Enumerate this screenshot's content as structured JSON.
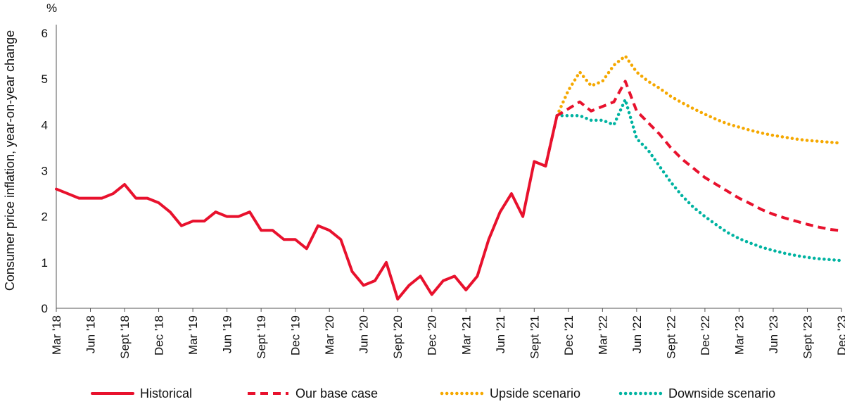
{
  "chart_data": {
    "type": "line",
    "unit_label": "%",
    "ylabel": "Consumer price inflation, year-on-year change",
    "ylim": [
      0,
      6
    ],
    "y_ticks": [
      "0",
      "1",
      "2",
      "3",
      "4",
      "5",
      "6"
    ],
    "x_start": "2018-03",
    "x_end": "2023-12",
    "x_ticks": [
      {
        "label": "Mar '18",
        "date": "2018-03"
      },
      {
        "label": "Jun '18",
        "date": "2018-06"
      },
      {
        "label": "Sept '18",
        "date": "2018-09"
      },
      {
        "label": "Dec '18",
        "date": "2018-12"
      },
      {
        "label": "Mar '19",
        "date": "2019-03"
      },
      {
        "label": "Jun '19",
        "date": "2019-06"
      },
      {
        "label": "Sept '19",
        "date": "2019-09"
      },
      {
        "label": "Dec '19",
        "date": "2019-12"
      },
      {
        "label": "Mar '20",
        "date": "2020-03"
      },
      {
        "label": "Jun '20",
        "date": "2020-06"
      },
      {
        "label": "Sept '20",
        "date": "2020-09"
      },
      {
        "label": "Dec '20",
        "date": "2020-12"
      },
      {
        "label": "Mar '21",
        "date": "2021-03"
      },
      {
        "label": "Jun '21",
        "date": "2021-06"
      },
      {
        "label": "Sept '21",
        "date": "2021-09"
      },
      {
        "label": "Dec '21",
        "date": "2021-12"
      },
      {
        "label": "Mar '22",
        "date": "2022-03"
      },
      {
        "label": "Jun '22",
        "date": "2022-06"
      },
      {
        "label": "Sept '22",
        "date": "2022-09"
      },
      {
        "label": "Dec '22",
        "date": "2022-12"
      },
      {
        "label": "Mar '23",
        "date": "2023-03"
      },
      {
        "label": "Jun '23",
        "date": "2023-06"
      },
      {
        "label": "Sept '23",
        "date": "2023-09"
      },
      {
        "label": "Dec '23",
        "date": "2023-12"
      }
    ],
    "grid": false,
    "legend_position": "bottom",
    "series": [
      {
        "name": "Historical",
        "color": "#e8112d",
        "style": "solid",
        "points": [
          [
            "2018-03",
            2.6
          ],
          [
            "2018-04",
            2.5
          ],
          [
            "2018-05",
            2.4
          ],
          [
            "2018-06",
            2.4
          ],
          [
            "2018-07",
            2.4
          ],
          [
            "2018-08",
            2.5
          ],
          [
            "2018-09",
            2.7
          ],
          [
            "2018-10",
            2.4
          ],
          [
            "2018-11",
            2.4
          ],
          [
            "2018-12",
            2.3
          ],
          [
            "2019-01",
            2.1
          ],
          [
            "2019-02",
            1.8
          ],
          [
            "2019-03",
            1.9
          ],
          [
            "2019-04",
            1.9
          ],
          [
            "2019-05",
            2.1
          ],
          [
            "2019-06",
            2.0
          ],
          [
            "2019-07",
            2.0
          ],
          [
            "2019-08",
            2.1
          ],
          [
            "2019-09",
            1.7
          ],
          [
            "2019-10",
            1.7
          ],
          [
            "2019-11",
            1.5
          ],
          [
            "2019-12",
            1.5
          ],
          [
            "2020-01",
            1.3
          ],
          [
            "2020-02",
            1.8
          ],
          [
            "2020-03",
            1.7
          ],
          [
            "2020-04",
            1.5
          ],
          [
            "2020-05",
            0.8
          ],
          [
            "2020-06",
            0.5
          ],
          [
            "2020-07",
            0.6
          ],
          [
            "2020-08",
            1.0
          ],
          [
            "2020-09",
            0.2
          ],
          [
            "2020-10",
            0.5
          ],
          [
            "2020-11",
            0.7
          ],
          [
            "2020-12",
            0.3
          ],
          [
            "2021-01",
            0.6
          ],
          [
            "2021-02",
            0.7
          ],
          [
            "2021-03",
            0.4
          ],
          [
            "2021-04",
            0.7
          ],
          [
            "2021-05",
            1.5
          ],
          [
            "2021-06",
            2.1
          ],
          [
            "2021-07",
            2.5
          ],
          [
            "2021-08",
            2.0
          ],
          [
            "2021-09",
            3.2
          ],
          [
            "2021-10",
            3.1
          ],
          [
            "2021-11",
            4.2
          ]
        ]
      },
      {
        "name": "Our base case",
        "color": "#e8112d",
        "style": "dashed",
        "points": [
          [
            "2021-10",
            3.1
          ],
          [
            "2021-11",
            4.2
          ],
          [
            "2021-12",
            4.35
          ],
          [
            "2022-01",
            4.5
          ],
          [
            "2022-02",
            4.3
          ],
          [
            "2022-03",
            4.4
          ],
          [
            "2022-04",
            4.5
          ],
          [
            "2022-05",
            4.95
          ],
          [
            "2022-06",
            4.3
          ],
          [
            "2022-07",
            4.05
          ],
          [
            "2022-08",
            3.8
          ],
          [
            "2022-09",
            3.5
          ],
          [
            "2022-10",
            3.25
          ],
          [
            "2022-11",
            3.05
          ],
          [
            "2022-12",
            2.85
          ],
          [
            "2023-01",
            2.7
          ],
          [
            "2023-02",
            2.55
          ],
          [
            "2023-03",
            2.4
          ],
          [
            "2023-04",
            2.28
          ],
          [
            "2023-05",
            2.15
          ],
          [
            "2023-06",
            2.05
          ],
          [
            "2023-07",
            1.97
          ],
          [
            "2023-08",
            1.9
          ],
          [
            "2023-09",
            1.83
          ],
          [
            "2023-10",
            1.77
          ],
          [
            "2023-11",
            1.72
          ],
          [
            "2023-12",
            1.69
          ]
        ]
      },
      {
        "name": "Upside scenario",
        "color": "#f5a800",
        "style": "dotted",
        "points": [
          [
            "2021-11",
            4.2
          ],
          [
            "2021-12",
            4.75
          ],
          [
            "2022-01",
            5.15
          ],
          [
            "2022-02",
            4.85
          ],
          [
            "2022-03",
            4.95
          ],
          [
            "2022-04",
            5.3
          ],
          [
            "2022-05",
            5.5
          ],
          [
            "2022-06",
            5.15
          ],
          [
            "2022-07",
            4.95
          ],
          [
            "2022-08",
            4.8
          ],
          [
            "2022-09",
            4.62
          ],
          [
            "2022-10",
            4.48
          ],
          [
            "2022-11",
            4.35
          ],
          [
            "2022-12",
            4.23
          ],
          [
            "2023-01",
            4.12
          ],
          [
            "2023-02",
            4.02
          ],
          [
            "2023-03",
            3.95
          ],
          [
            "2023-04",
            3.88
          ],
          [
            "2023-05",
            3.82
          ],
          [
            "2023-06",
            3.77
          ],
          [
            "2023-07",
            3.73
          ],
          [
            "2023-08",
            3.69
          ],
          [
            "2023-09",
            3.66
          ],
          [
            "2023-10",
            3.64
          ],
          [
            "2023-11",
            3.62
          ],
          [
            "2023-12",
            3.6
          ]
        ]
      },
      {
        "name": "Downside scenario",
        "color": "#00b3a1",
        "style": "dotted",
        "points": [
          [
            "2021-11",
            4.2
          ],
          [
            "2021-12",
            4.2
          ],
          [
            "2022-01",
            4.2
          ],
          [
            "2022-02",
            4.1
          ],
          [
            "2022-03",
            4.1
          ],
          [
            "2022-04",
            4.0
          ],
          [
            "2022-05",
            4.55
          ],
          [
            "2022-06",
            3.7
          ],
          [
            "2022-07",
            3.45
          ],
          [
            "2022-08",
            3.1
          ],
          [
            "2022-09",
            2.75
          ],
          [
            "2022-10",
            2.45
          ],
          [
            "2022-11",
            2.2
          ],
          [
            "2022-12",
            2.0
          ],
          [
            "2023-01",
            1.82
          ],
          [
            "2023-02",
            1.65
          ],
          [
            "2023-03",
            1.52
          ],
          [
            "2023-04",
            1.42
          ],
          [
            "2023-05",
            1.33
          ],
          [
            "2023-06",
            1.26
          ],
          [
            "2023-07",
            1.2
          ],
          [
            "2023-08",
            1.15
          ],
          [
            "2023-09",
            1.11
          ],
          [
            "2023-10",
            1.08
          ],
          [
            "2023-11",
            1.06
          ],
          [
            "2023-12",
            1.04
          ]
        ]
      }
    ]
  }
}
